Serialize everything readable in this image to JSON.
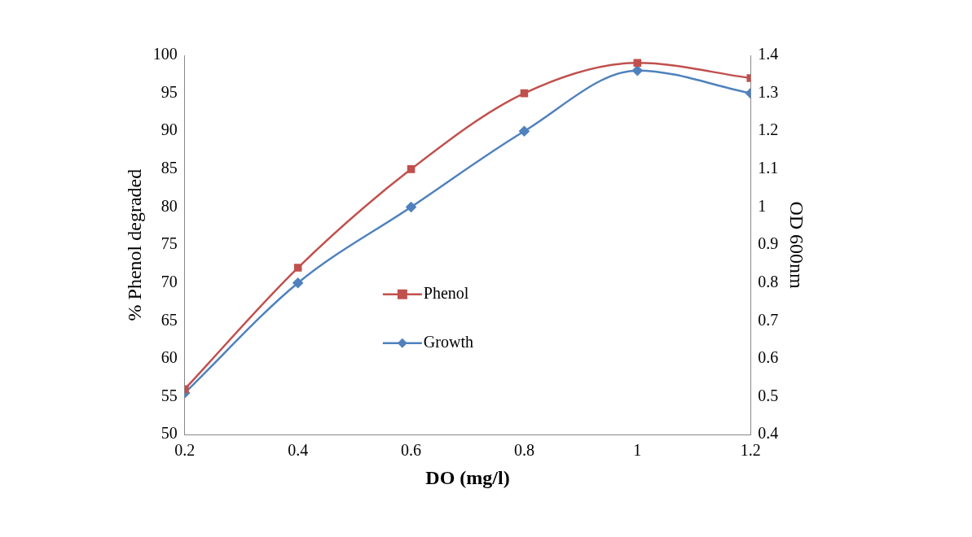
{
  "chart_data": {
    "type": "line",
    "xlabel": "DO (mg/l)",
    "ylabel": "% Phenol degraded",
    "y2label": "OD 600nm",
    "x": [
      0.2,
      0.4,
      0.6,
      0.8,
      1,
      1.2
    ],
    "xlim": [
      0.2,
      1.2
    ],
    "xticks": [
      0.2,
      0.4,
      0.6,
      0.8,
      1,
      1.2
    ],
    "ylim": [
      50,
      100
    ],
    "yticks": [
      50,
      55,
      60,
      65,
      70,
      75,
      80,
      85,
      90,
      95,
      100
    ],
    "y2lim": [
      0.4,
      1.4
    ],
    "y2ticks": [
      0.4,
      0.5,
      0.6,
      0.7,
      0.8,
      0.9,
      1,
      1.1,
      1.2,
      1.3,
      1.4
    ],
    "series": [
      {
        "name": "Phenol",
        "color": "#c0504d",
        "marker": "square",
        "values": [
          56,
          72,
          85,
          95,
          99,
          97
        ]
      },
      {
        "name": "Growth",
        "color": "#4f81bd",
        "marker": "diamond",
        "axis": "y2",
        "values": [
          0.51,
          0.8,
          1.0,
          1.2,
          1.36,
          1.3
        ]
      }
    ],
    "grid": false,
    "legend": "center",
    "line_style": "solid"
  }
}
